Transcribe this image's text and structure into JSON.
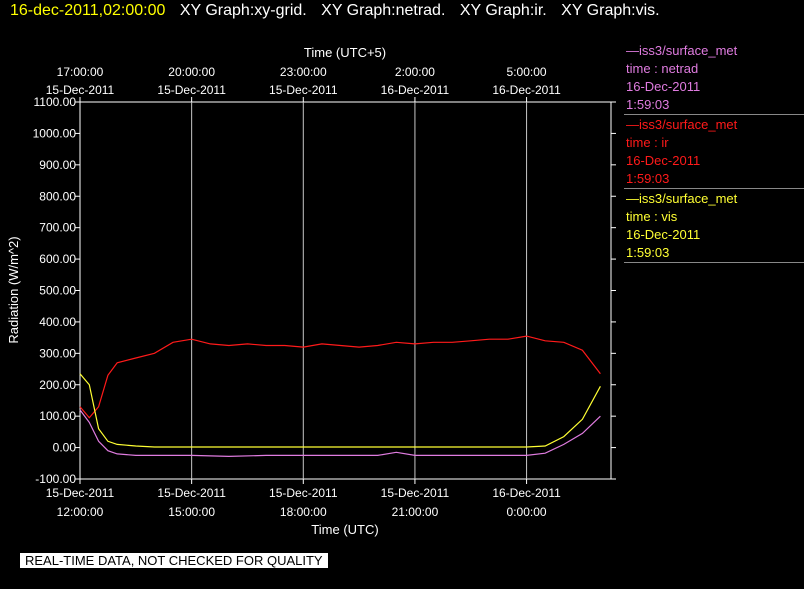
{
  "header": {
    "timestamp": "16-dec-2011,02:00:00",
    "graphs": [
      "XY Graph:xy-grid.",
      "XY Graph:netrad.",
      "XY Graph:ir.",
      "XY Graph:vis."
    ]
  },
  "colors": {
    "netrad": "#e07ce0",
    "ir": "#ff1a1a",
    "vis": "#ffff33",
    "grid": "#c8c8c8"
  },
  "legend": [
    {
      "source": "—iss3/surface_met",
      "label": "time : netrad",
      "date": "16-Dec-2011",
      "time": "1:59:03",
      "color": "#e07ce0"
    },
    {
      "source": "—iss3/surface_met",
      "label": "time : ir",
      "date": "16-Dec-2011",
      "time": "1:59:03",
      "color": "#ff1a1a"
    },
    {
      "source": "—iss3/surface_met",
      "label": "time : vis",
      "date": "16-Dec-2011",
      "time": "1:59:03",
      "color": "#ffff33"
    }
  ],
  "qc_note": "REAL-TIME DATA, NOT CHECKED FOR QUALITY",
  "chart_data": {
    "type": "line",
    "xlabel": "Time (UTC)",
    "x2label": "Time (UTC+5)",
    "ylabel": "Radiation (W/m^2)",
    "ylim": [
      -100,
      1100
    ],
    "yticks": [
      -100,
      0,
      100,
      200,
      300,
      400,
      500,
      600,
      700,
      800,
      900,
      1000,
      1100
    ],
    "ytick_labels": [
      "-100.00",
      "0.00",
      "100.00",
      "200.00",
      "300.00",
      "400.00",
      "500.00",
      "600.00",
      "700.00",
      "800.00",
      "900.00",
      "1000.00",
      "1100.00"
    ],
    "xlim": [
      "2011-12-15 12:00",
      "2011-12-16 02:00"
    ],
    "xticks_bottom": [
      {
        "x": "2011-12-15 12:00",
        "date": "15-Dec-2011",
        "time": "12:00:00"
      },
      {
        "x": "2011-12-15 15:00",
        "date": "15-Dec-2011",
        "time": "15:00:00"
      },
      {
        "x": "2011-12-15 18:00",
        "date": "15-Dec-2011",
        "time": "18:00:00"
      },
      {
        "x": "2011-12-15 21:00",
        "date": "15-Dec-2011",
        "time": "21:00:00"
      },
      {
        "x": "2011-12-16 00:00",
        "date": "16-Dec-2011",
        "time": "0:00:00"
      }
    ],
    "xticks_top": [
      {
        "x": "2011-12-15 12:00",
        "time": "17:00:00",
        "date": "15-Dec-2011"
      },
      {
        "x": "2011-12-15 15:00",
        "time": "20:00:00",
        "date": "15-Dec-2011"
      },
      {
        "x": "2011-12-15 18:00",
        "time": "23:00:00",
        "date": "15-Dec-2011"
      },
      {
        "x": "2011-12-15 21:00",
        "time": "2:00:00",
        "date": "16-Dec-2011"
      },
      {
        "x": "2011-12-16 00:00",
        "time": "5:00:00",
        "date": "16-Dec-2011"
      }
    ],
    "grid": true,
    "series": [
      {
        "key": "ir",
        "color": "#ff1a1a",
        "points": [
          [
            "2011-12-15 12:00",
            130
          ],
          [
            "2011-12-15 12:15",
            95
          ],
          [
            "2011-12-15 12:30",
            130
          ],
          [
            "2011-12-15 12:45",
            230
          ],
          [
            "2011-12-15 13:00",
            270
          ],
          [
            "2011-12-15 13:30",
            285
          ],
          [
            "2011-12-15 14:00",
            300
          ],
          [
            "2011-12-15 14:30",
            335
          ],
          [
            "2011-12-15 15:00",
            345
          ],
          [
            "2011-12-15 15:30",
            330
          ],
          [
            "2011-12-15 16:00",
            325
          ],
          [
            "2011-12-15 16:30",
            330
          ],
          [
            "2011-12-15 17:00",
            325
          ],
          [
            "2011-12-15 17:30",
            325
          ],
          [
            "2011-12-15 18:00",
            320
          ],
          [
            "2011-12-15 18:30",
            330
          ],
          [
            "2011-12-15 19:00",
            325
          ],
          [
            "2011-12-15 19:30",
            320
          ],
          [
            "2011-12-15 20:00",
            325
          ],
          [
            "2011-12-15 20:30",
            335
          ],
          [
            "2011-12-15 21:00",
            330
          ],
          [
            "2011-12-15 21:30",
            335
          ],
          [
            "2011-12-15 22:00",
            335
          ],
          [
            "2011-12-15 22:30",
            340
          ],
          [
            "2011-12-15 23:00",
            345
          ],
          [
            "2011-12-15 23:30",
            345
          ],
          [
            "2011-12-16 00:00",
            355
          ],
          [
            "2011-12-16 00:30",
            340
          ],
          [
            "2011-12-16 01:00",
            335
          ],
          [
            "2011-12-16 01:30",
            310
          ],
          [
            "2011-12-16 01:59",
            235
          ]
        ]
      },
      {
        "key": "vis",
        "color": "#ffff33",
        "points": [
          [
            "2011-12-15 12:00",
            235
          ],
          [
            "2011-12-15 12:15",
            200
          ],
          [
            "2011-12-15 12:30",
            60
          ],
          [
            "2011-12-15 12:45",
            20
          ],
          [
            "2011-12-15 13:00",
            10
          ],
          [
            "2011-12-15 13:30",
            5
          ],
          [
            "2011-12-15 14:00",
            2
          ],
          [
            "2011-12-15 15:00",
            2
          ],
          [
            "2011-12-15 16:00",
            2
          ],
          [
            "2011-12-15 17:00",
            2
          ],
          [
            "2011-12-15 18:00",
            2
          ],
          [
            "2011-12-15 19:00",
            2
          ],
          [
            "2011-12-15 20:00",
            2
          ],
          [
            "2011-12-15 21:00",
            2
          ],
          [
            "2011-12-15 22:00",
            2
          ],
          [
            "2011-12-15 23:00",
            2
          ],
          [
            "2011-12-16 00:00",
            2
          ],
          [
            "2011-12-16 00:30",
            5
          ],
          [
            "2011-12-16 01:00",
            35
          ],
          [
            "2011-12-16 01:30",
            90
          ],
          [
            "2011-12-16 01:59",
            195
          ]
        ]
      },
      {
        "key": "netrad",
        "color": "#e07ce0",
        "points": [
          [
            "2011-12-15 12:00",
            120
          ],
          [
            "2011-12-15 12:15",
            80
          ],
          [
            "2011-12-15 12:30",
            20
          ],
          [
            "2011-12-15 12:45",
            -10
          ],
          [
            "2011-12-15 13:00",
            -20
          ],
          [
            "2011-12-15 13:30",
            -25
          ],
          [
            "2011-12-15 14:00",
            -25
          ],
          [
            "2011-12-15 15:00",
            -25
          ],
          [
            "2011-12-15 16:00",
            -28
          ],
          [
            "2011-12-15 17:00",
            -25
          ],
          [
            "2011-12-15 18:00",
            -25
          ],
          [
            "2011-12-15 19:00",
            -25
          ],
          [
            "2011-12-15 20:00",
            -25
          ],
          [
            "2011-12-15 20:30",
            -15
          ],
          [
            "2011-12-15 21:00",
            -25
          ],
          [
            "2011-12-15 22:00",
            -25
          ],
          [
            "2011-12-15 23:00",
            -25
          ],
          [
            "2011-12-16 00:00",
            -25
          ],
          [
            "2011-12-16 00:30",
            -18
          ],
          [
            "2011-12-16 01:00",
            10
          ],
          [
            "2011-12-16 01:30",
            45
          ],
          [
            "2011-12-16 01:59",
            100
          ]
        ]
      }
    ]
  }
}
